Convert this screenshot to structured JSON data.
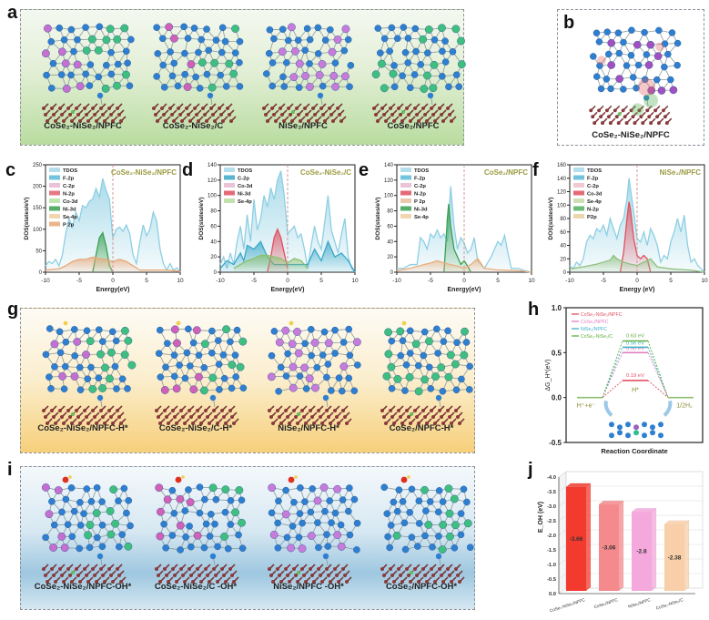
{
  "figure": {
    "panel_labels": {
      "a": "a",
      "b": "b",
      "c": "c",
      "d": "d",
      "e": "e",
      "f": "f",
      "g": "g",
      "h": "h",
      "i": "i",
      "j": "j"
    },
    "panel_a": {
      "structures": [
        {
          "label": "CoSe₂-NiSe₂/NPFC",
          "metals": [
            "#c56fd0",
            "#3fbf7f"
          ],
          "substrate": "NPFC"
        },
        {
          "label": "CoSe₂-NiSe₂/C",
          "metals": [
            "#d060b8",
            "#3fbf7f"
          ],
          "substrate": "C"
        },
        {
          "label": "NiSe₂/NPFC",
          "metals": [
            "#c77bdb",
            "#c77bdb"
          ],
          "substrate": "NPFC"
        },
        {
          "label": "CoSe₂/NPFC",
          "metals": [
            "#3fbf7f",
            "#3fbf7f"
          ],
          "substrate": "NPFC"
        }
      ]
    },
    "panel_b": {
      "label": "CoSe₂-NiSe₂/NPFC"
    },
    "panel_g": {
      "structures": [
        {
          "label": "CoSe₂-NiSe₂/NPFC-H*",
          "metals": [
            "#c56fd0",
            "#3fbf7f"
          ],
          "substrate": "NPFC"
        },
        {
          "label": "CoSe₂-NiSe₂/C-H*",
          "metals": [
            "#d060b8",
            "#3fbf7f"
          ],
          "substrate": "C"
        },
        {
          "label": "NiSe₂/NPFC-H*",
          "metals": [
            "#c77bdb",
            "#c77bdb"
          ],
          "substrate": "NPFC"
        },
        {
          "label": "CoSe₂/NPFC-H*",
          "metals": [
            "#3fbf7f",
            "#3fbf7f"
          ],
          "substrate": "NPFC"
        }
      ]
    },
    "panel_i": {
      "structures": [
        {
          "label": "CoSe₂-NiSe₂/NPFC-OH*",
          "metals": [
            "#c56fd0",
            "#3fbf7f"
          ],
          "substrate": "NPFC"
        },
        {
          "label": "CoSe₂-NiSe₂/C -OH*",
          "metals": [
            "#d060b8",
            "#3fbf7f"
          ],
          "substrate": "C"
        },
        {
          "label": "NiSe₂/NPFC -OH*",
          "metals": [
            "#c77bdb",
            "#c77bdb"
          ],
          "substrate": "NPFC"
        },
        {
          "label": "CoSe₂/NPFC-OH*",
          "metals": [
            "#3fbf7f",
            "#3fbf7f"
          ],
          "substrate": "NPFC"
        }
      ]
    }
  },
  "chart_data": [
    {
      "id": "c",
      "type": "area",
      "title": "CoSe₂-NiSe₂/NPFC",
      "xlabel": "Energy(eV)",
      "ylabel": "DOS(states/eV)",
      "xlim": [
        -10,
        10
      ],
      "ylim": [
        0,
        250
      ],
      "xticks": [
        -10,
        -5,
        0,
        5,
        10
      ],
      "yticks": [
        0,
        50,
        100,
        150,
        200,
        250
      ],
      "fermi_level": 0,
      "legend": [
        "TDOS",
        "F-2p",
        "C-2p",
        "N-2p",
        "Co-3d",
        "Ni-3d",
        "Se-4p",
        "P 2p"
      ],
      "legend_colors": [
        "#a8d8ea",
        "#5bb8d8",
        "#e8b8d0",
        "#e06070",
        "#b5e0a0",
        "#3aa050",
        "#f0d0a0",
        "#e8a878"
      ],
      "series": [
        {
          "name": "TDOS",
          "color": "#8ecfe3",
          "x": [
            -10,
            -9.5,
            -9,
            -8.5,
            -8,
            -7.5,
            -7,
            -6.5,
            -6,
            -5.5,
            -5,
            -4.5,
            -4,
            -3.5,
            -3,
            -2.5,
            -2,
            -1.5,
            -1,
            -0.5,
            -0.1,
            0,
            0.5,
            1,
            1.5,
            2,
            2.5,
            3,
            3.5,
            4,
            4.5,
            5,
            5.5,
            6,
            6.5,
            7,
            7.5,
            8,
            8.5,
            9,
            9.5,
            10
          ],
          "y": [
            15,
            25,
            20,
            30,
            15,
            40,
            90,
            125,
            105,
            140,
            120,
            155,
            150,
            165,
            170,
            195,
            175,
            218,
            190,
            170,
            95,
            80,
            100,
            105,
            95,
            110,
            90,
            40,
            20,
            70,
            110,
            85,
            100,
            140,
            120,
            55,
            20,
            5,
            20,
            5,
            10,
            0
          ]
        },
        {
          "name": "Ni-3d",
          "color": "#3aa050",
          "x": [
            -3,
            -2.5,
            -2,
            -1.5,
            -1,
            -0.5,
            0
          ],
          "y": [
            0,
            40,
            80,
            92,
            60,
            15,
            0
          ]
        },
        {
          "name": "Se-4p",
          "color": "#e8a878",
          "x": [
            -10,
            -8,
            -7,
            -6,
            -5,
            -4,
            -3,
            -2,
            -1,
            0,
            1,
            2,
            3,
            4,
            6,
            8,
            10
          ],
          "y": [
            5,
            8,
            15,
            25,
            30,
            30,
            35,
            32,
            30,
            25,
            30,
            25,
            15,
            5,
            5,
            5,
            2
          ]
        }
      ]
    },
    {
      "id": "d",
      "type": "area",
      "title": "CoSe₂-NiSe₂/C",
      "xlabel": "Energy(eV)",
      "ylabel": "DOS(states/eV)",
      "xlim": [
        -10,
        10
      ],
      "ylim": [
        0,
        140
      ],
      "xticks": [
        -10,
        -5,
        0,
        5,
        10
      ],
      "yticks": [
        0,
        20,
        40,
        60,
        80,
        100,
        120,
        140
      ],
      "fermi_level": 0,
      "legend": [
        "TDOS",
        "C-2p",
        "Co-3d",
        "Ni-3d",
        "Se-4p"
      ],
      "legend_colors": [
        "#a8d8ea",
        "#3aa8c8",
        "#e8b8d0",
        "#e05060",
        "#b8dca0"
      ],
      "series": [
        {
          "name": "TDOS",
          "color": "#8ecfe3",
          "x": [
            -10,
            -9.5,
            -9,
            -8.5,
            -8,
            -7.5,
            -7,
            -6.5,
            -6,
            -5.5,
            -5,
            -4.5,
            -4,
            -3.5,
            -3,
            -2.5,
            -2,
            -1.5,
            -1,
            -0.5,
            0,
            0.5,
            1,
            1.5,
            2,
            2.5,
            3,
            3.5,
            4,
            4.5,
            5,
            5.5,
            6,
            6.5,
            7,
            7.5,
            8,
            8.5,
            9,
            9.5,
            10
          ],
          "y": [
            10,
            20,
            5,
            25,
            10,
            40,
            60,
            30,
            75,
            40,
            95,
            55,
            70,
            100,
            85,
            110,
            95,
            120,
            132,
            100,
            50,
            55,
            60,
            45,
            50,
            30,
            5,
            35,
            60,
            40,
            30,
            65,
            100,
            55,
            40,
            25,
            50,
            70,
            20,
            5,
            0
          ]
        },
        {
          "name": "C-2p",
          "color": "#3aa8c8",
          "x": [
            -10,
            -9,
            -8,
            -7,
            -6.5,
            -6,
            -5,
            -4,
            -3,
            -2,
            3,
            4,
            5,
            6,
            7,
            8,
            9,
            10
          ],
          "y": [
            5,
            15,
            10,
            25,
            15,
            35,
            30,
            40,
            20,
            10,
            10,
            30,
            15,
            40,
            20,
            25,
            15,
            0
          ]
        },
        {
          "name": "Ni-3d",
          "color": "#e05060",
          "x": [
            -3,
            -2.5,
            -2,
            -1.5,
            -1,
            -0.5,
            0
          ],
          "y": [
            0,
            20,
            45,
            56,
            45,
            25,
            5
          ]
        },
        {
          "name": "Se-4p",
          "color": "#8cc070",
          "x": [
            -8,
            -7,
            -6,
            -5,
            -4,
            -3,
            -2,
            -1,
            0,
            1,
            2,
            3
          ],
          "y": [
            5,
            10,
            15,
            18,
            22,
            22,
            20,
            18,
            12,
            18,
            15,
            5
          ]
        }
      ]
    },
    {
      "id": "e",
      "type": "area",
      "title": "CoSe₂/NPFC",
      "xlabel": "Energy(eV)",
      "ylabel": "DOS(states/eV)",
      "xlim": [
        -10,
        10
      ],
      "ylim": [
        0,
        140
      ],
      "xticks": [
        -10,
        -5,
        0,
        5,
        10
      ],
      "yticks": [
        0,
        20,
        40,
        60,
        80,
        100,
        120,
        140
      ],
      "fermi_level": 0,
      "legend": [
        "TDOS",
        "F-2p",
        "C-2p",
        "N-2p",
        "P 2p",
        "Ni-3d",
        "Se-4p"
      ],
      "legend_colors": [
        "#a8d8ea",
        "#5bb8d8",
        "#e8b8d0",
        "#e05060",
        "#e8c0a0",
        "#3aa050",
        "#f0d0a0"
      ],
      "series": [
        {
          "name": "TDOS",
          "color": "#8ecfe3",
          "x": [
            -10,
            -9,
            -8,
            -7,
            -6.5,
            -6,
            -5.5,
            -5,
            -4.5,
            -4,
            -3.5,
            -3,
            -2.5,
            -2,
            -1.5,
            -1,
            -0.5,
            0,
            0.5,
            1,
            1.5,
            2,
            3,
            4,
            5,
            5.5,
            6,
            6.5,
            7,
            8,
            9,
            10
          ],
          "y": [
            5,
            5,
            10,
            10,
            45,
            40,
            30,
            50,
            45,
            55,
            45,
            50,
            40,
            112,
            60,
            30,
            45,
            38,
            25,
            30,
            45,
            15,
            5,
            20,
            40,
            35,
            48,
            25,
            5,
            5,
            2,
            0
          ]
        },
        {
          "name": "Ni-3d",
          "color": "#3aa050",
          "x": [
            -3,
            -2.7,
            -2.5,
            -2.3,
            -2,
            -1.5,
            -1,
            -0.5,
            0,
            0.5,
            1
          ],
          "y": [
            0,
            40,
            70,
            89,
            60,
            30,
            20,
            10,
            15,
            8,
            0
          ]
        },
        {
          "name": "Se-4p",
          "color": "#e8b080",
          "x": [
            -10,
            -8,
            -6,
            -5,
            -4,
            -3,
            -2,
            -1,
            0,
            1,
            2,
            3,
            5,
            8,
            10
          ],
          "y": [
            2,
            5,
            10,
            12,
            15,
            12,
            10,
            8,
            5,
            10,
            18,
            5,
            3,
            2,
            0
          ]
        }
      ]
    },
    {
      "id": "f",
      "type": "area",
      "title": "NiSe₂/NPFC",
      "xlabel": "Energy (eV)",
      "ylabel": "DOS(states/eV)",
      "xlim": [
        -10,
        10
      ],
      "ylim": [
        0,
        160
      ],
      "xticks": [
        -10,
        -5,
        0,
        5,
        10
      ],
      "yticks": [
        0,
        20,
        40,
        60,
        80,
        100,
        120,
        140,
        160
      ],
      "fermi_level": 0,
      "legend": [
        "TDOS",
        "F-2p",
        "C-2p",
        "Co-3d",
        "Se-4p",
        "N-2p",
        "P2p"
      ],
      "legend_colors": [
        "#a8d8ea",
        "#5bb8d8",
        "#f0c0c8",
        "#e05060",
        "#c8d8a8",
        "#50b060",
        "#e8d0a0"
      ],
      "series": [
        {
          "name": "TDOS",
          "color": "#8ecfe3",
          "x": [
            -10,
            -9.5,
            -9,
            -8.5,
            -8,
            -7.5,
            -7,
            -6.5,
            -6,
            -5.5,
            -5,
            -4.5,
            -4,
            -3.5,
            -3,
            -2.5,
            -2,
            -1.5,
            -1.2,
            -1,
            -0.5,
            0,
            0.5,
            1,
            1.5,
            2,
            2.5,
            3,
            3.5,
            4,
            4.5,
            5,
            5.5,
            6,
            6.5,
            7,
            7.5,
            8,
            8.5,
            9,
            9.5,
            10
          ],
          "y": [
            10,
            5,
            15,
            10,
            20,
            45,
            55,
            50,
            65,
            60,
            70,
            55,
            80,
            65,
            50,
            70,
            80,
            110,
            140,
            125,
            90,
            50,
            45,
            60,
            40,
            65,
            55,
            40,
            15,
            25,
            20,
            45,
            60,
            80,
            60,
            85,
            40,
            15,
            20,
            10,
            5,
            0
          ]
        },
        {
          "name": "Co-3d",
          "color": "#e05060",
          "x": [
            -2.5,
            -2,
            -1.5,
            -1.2,
            -1,
            -0.5,
            0,
            0.5,
            1,
            1.5,
            2
          ],
          "y": [
            0,
            30,
            80,
            105,
            95,
            50,
            25,
            20,
            25,
            20,
            0
          ]
        },
        {
          "name": "Se-4p",
          "color": "#90c080",
          "x": [
            -10,
            -8,
            -6,
            -5,
            -4,
            -3.5,
            -3,
            -2,
            -1,
            0,
            1,
            2,
            3,
            5,
            8,
            10
          ],
          "y": [
            5,
            8,
            12,
            15,
            18,
            25,
            20,
            15,
            12,
            10,
            15,
            20,
            8,
            5,
            3,
            0
          ]
        }
      ]
    },
    {
      "id": "h",
      "type": "line",
      "title": "",
      "xlabel": "Reaction Coordinate",
      "ylabel": "ΔG_H*(eV)",
      "ylim": [
        -0.5,
        1.0
      ],
      "yticks": [
        -0.5,
        0.0,
        0.5,
        1.0
      ],
      "states": [
        "H⁺+e⁻",
        "H*",
        "1/2H₂"
      ],
      "series": [
        {
          "name": "CoSe₂-NiSe₂/NPFC",
          "color": "#e05060",
          "values": [
            0,
            0.19,
            0
          ],
          "label": "0.19 eV"
        },
        {
          "name": "CoSe₂/NPFC",
          "color": "#e080c0",
          "values": [
            0,
            0.5,
            0
          ],
          "label": "0.50 eV"
        },
        {
          "name": "NiSe₂/NPFC",
          "color": "#40b0c8",
          "values": [
            0,
            0.56,
            0
          ],
          "label": "0.56 eV"
        },
        {
          "name": "CoSe₂-NiSe₂/C",
          "color": "#60b040",
          "values": [
            0,
            0.63,
            0
          ],
          "label": "0.63 eV"
        }
      ]
    },
    {
      "id": "j",
      "type": "bar",
      "title": "",
      "xlabel": "",
      "ylabel": "E_OH (eV)",
      "ylim": [
        0,
        -4.0
      ],
      "yticks": [
        0.0,
        -0.5,
        -1.0,
        -1.5,
        -2.0,
        -2.5,
        -3.0,
        -3.5,
        -4.0
      ],
      "categories": [
        "CoSe₂-NiSe₂/NPFC",
        "CoSe₂/NPFC",
        "NiSe₂/NPFC",
        "CoSe₂-NiSe₂/C"
      ],
      "values": [
        -3.66,
        -3.06,
        -2.8,
        -2.38
      ],
      "value_labels": [
        "-3.66",
        "-3.06",
        "-2.8",
        "-2.38"
      ],
      "colors": [
        "#f23a2e",
        "#f58a8c",
        "#f4a8dc",
        "#f8cfa8"
      ]
    }
  ]
}
